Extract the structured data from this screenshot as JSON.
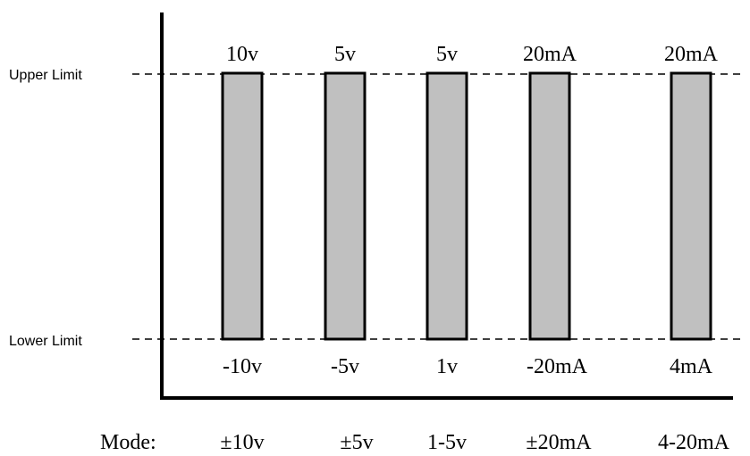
{
  "limit_labels": {
    "upper": "Upper Limit",
    "lower": "Lower Limit"
  },
  "mode_prefix": "Mode:",
  "bars": [
    {
      "upper": "10v",
      "lower": "-10v",
      "mode": "±10v"
    },
    {
      "upper": "5v",
      "lower": "-5v",
      "mode": "±5v"
    },
    {
      "upper": "5v",
      "lower": "1v",
      "mode": "1-5v"
    },
    {
      "upper": "20mA",
      "lower": "-20mA",
      "mode": "±20mA"
    },
    {
      "upper": "20mA",
      "lower": "4mA",
      "mode": "4-20mA"
    }
  ],
  "colors": {
    "bar_fill": "#c0c0c0",
    "line": "#000000"
  }
}
